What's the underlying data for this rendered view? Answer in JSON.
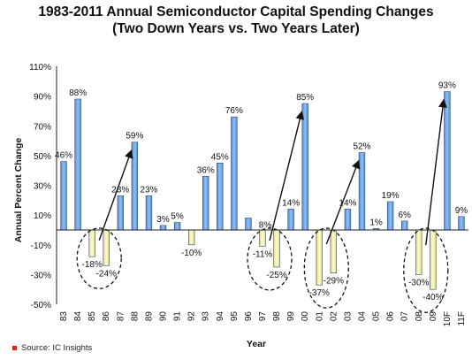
{
  "chart_data": {
    "type": "bar",
    "title": "1983-2011 Annual Semiconductor Capital Spending Changes",
    "subtitle": "(Two Down Years vs. Two Years Later)",
    "xlabel": "Year",
    "ylabel": "Annual Percent Change",
    "ylim": [
      -50,
      110
    ],
    "yticks": [
      "110%",
      "90%",
      "70%",
      "50%",
      "30%",
      "10%",
      "-10%",
      "-30%",
      "-50%"
    ],
    "categories": [
      "83",
      "84",
      "85",
      "86",
      "87",
      "88",
      "89",
      "90",
      "91",
      "92",
      "93",
      "94",
      "95",
      "96",
      "97",
      "98",
      "99",
      "00",
      "01",
      "02",
      "03",
      "04",
      "05",
      "06",
      "07",
      "08",
      "09",
      "10F",
      "11F"
    ],
    "values": [
      46,
      88,
      -18,
      -24,
      23,
      59,
      23,
      3,
      5,
      -10,
      36,
      45,
      76,
      8,
      -11,
      -25,
      14,
      85,
      -37,
      -29,
      14,
      52,
      1,
      19,
      6,
      -30,
      -40,
      93,
      9
    ],
    "labels": [
      "46%",
      "88%",
      "-18%",
      "-24%",
      "23%",
      "59%",
      "23%",
      "3%",
      "5%",
      "-10%",
      "36%",
      "45%",
      "76%",
      "",
      "-11%",
      "-25%",
      "14%",
      "85%",
      "-37%",
      "-29%",
      "14%",
      "52%",
      "1%",
      "19%",
      "6%",
      "-30%",
      "-40%",
      "93%",
      "9%"
    ],
    "extra_labels": [
      "8%"
    ],
    "highlighted_down_years": [
      "85",
      "86",
      "97",
      "98",
      "01",
      "02",
      "08",
      "09"
    ],
    "colors": {
      "up": "#6aa6e8",
      "down": "#f3f0a8",
      "edge": "#334466"
    },
    "source": "Source: IC Insights"
  }
}
